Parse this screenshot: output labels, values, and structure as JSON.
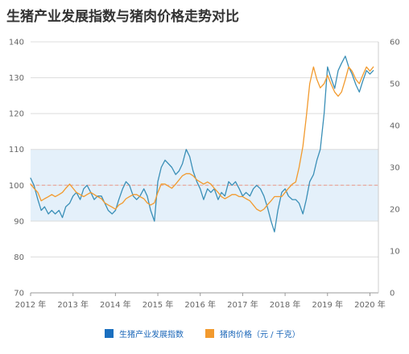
{
  "chart_data": {
    "type": "line",
    "title": "生猪产业发展指数与猪肉价格走势对比",
    "y_left": {
      "lim": [
        70,
        140
      ],
      "ticks": [
        "70",
        "80",
        "90",
        "100",
        "110",
        "120",
        "130",
        "140"
      ]
    },
    "y_right": {
      "lim": [
        0,
        60
      ],
      "ticks": [
        "0",
        "10",
        "20",
        "30",
        "40",
        "50",
        "60"
      ]
    },
    "x_ticks": [
      "2012 年",
      "2013 年",
      "2014 年",
      "2015 年",
      "2016 年",
      "2017 年",
      "2018 年",
      "2019 年",
      "2020 年"
    ],
    "band": {
      "range": [
        90,
        110
      ],
      "color": "#e4f0fa"
    },
    "reference_line": {
      "value": 100,
      "color": "#e8a9a0"
    },
    "grid": true,
    "legend_position": "bottom",
    "series": [
      {
        "name": "生猪产业发展指数",
        "axis": "left",
        "color": "#3a8fb7",
        "x": [
          2012.0,
          2012.08,
          2012.17,
          2012.25,
          2012.33,
          2012.42,
          2012.5,
          2012.58,
          2012.67,
          2012.75,
          2012.83,
          2012.92,
          2013.0,
          2013.08,
          2013.17,
          2013.25,
          2013.33,
          2013.42,
          2013.5,
          2013.58,
          2013.67,
          2013.75,
          2013.83,
          2013.92,
          2014.0,
          2014.08,
          2014.17,
          2014.25,
          2014.33,
          2014.42,
          2014.5,
          2014.58,
          2014.67,
          2014.75,
          2014.83,
          2014.92,
          2015.0,
          2015.08,
          2015.17,
          2015.25,
          2015.33,
          2015.42,
          2015.5,
          2015.58,
          2015.67,
          2015.75,
          2015.83,
          2015.92,
          2016.0,
          2016.08,
          2016.17,
          2016.25,
          2016.33,
          2016.42,
          2016.5,
          2016.58,
          2016.67,
          2016.75,
          2016.83,
          2016.92,
          2017.0,
          2017.08,
          2017.17,
          2017.25,
          2017.33,
          2017.42,
          2017.5,
          2017.58,
          2017.67,
          2017.75,
          2017.83,
          2017.92,
          2018.0,
          2018.08,
          2018.17,
          2018.25,
          2018.33,
          2018.42,
          2018.5,
          2018.58,
          2018.67,
          2018.75,
          2018.83,
          2018.92,
          2019.0,
          2019.08,
          2019.17,
          2019.25,
          2019.33,
          2019.42,
          2019.5,
          2019.58,
          2019.67,
          2019.75,
          2019.83,
          2019.92,
          2020.0,
          2020.08
        ],
        "values": [
          102,
          100,
          96,
          93,
          94,
          92,
          93,
          92,
          93,
          91,
          94,
          95,
          97,
          98,
          96,
          99,
          100,
          98,
          96,
          97,
          97,
          95,
          93,
          92,
          93,
          96,
          99,
          101,
          100,
          97,
          96,
          97,
          99,
          97,
          93,
          90,
          101,
          105,
          107,
          106,
          105,
          103,
          104,
          106,
          110,
          108,
          104,
          101,
          99,
          96,
          99,
          98,
          99,
          96,
          98,
          97,
          101,
          100,
          101,
          99,
          97,
          98,
          97,
          99,
          100,
          99,
          97,
          94,
          90,
          87,
          93,
          98,
          99,
          97,
          96,
          96,
          95,
          92,
          96,
          101,
          103,
          107,
          110,
          120,
          133,
          130,
          127,
          132,
          134,
          136,
          133,
          131,
          128,
          126,
          129,
          132,
          131,
          132
        ]
      },
      {
        "name": "猪肉价格（元 / 千克）",
        "axis": "right",
        "color": "#f29a2e",
        "x": [
          2012.0,
          2012.08,
          2012.17,
          2012.25,
          2012.33,
          2012.42,
          2012.5,
          2012.58,
          2012.67,
          2012.75,
          2012.83,
          2012.92,
          2013.0,
          2013.08,
          2013.17,
          2013.25,
          2013.33,
          2013.42,
          2013.5,
          2013.58,
          2013.67,
          2013.75,
          2013.83,
          2013.92,
          2014.0,
          2014.08,
          2014.17,
          2014.25,
          2014.33,
          2014.42,
          2014.5,
          2014.58,
          2014.67,
          2014.75,
          2014.83,
          2014.92,
          2015.0,
          2015.08,
          2015.17,
          2015.25,
          2015.33,
          2015.42,
          2015.5,
          2015.58,
          2015.67,
          2015.75,
          2015.83,
          2015.92,
          2016.0,
          2016.08,
          2016.17,
          2016.25,
          2016.33,
          2016.42,
          2016.5,
          2016.58,
          2016.67,
          2016.75,
          2016.83,
          2016.92,
          2017.0,
          2017.08,
          2017.17,
          2017.25,
          2017.33,
          2017.42,
          2017.5,
          2017.58,
          2017.67,
          2017.75,
          2017.83,
          2017.92,
          2018.0,
          2018.08,
          2018.17,
          2018.25,
          2018.33,
          2018.42,
          2018.5,
          2018.58,
          2018.67,
          2018.75,
          2018.83,
          2018.92,
          2019.0,
          2019.08,
          2019.17,
          2019.25,
          2019.33,
          2019.42,
          2019.5,
          2019.58,
          2019.67,
          2019.75,
          2019.83,
          2019.92,
          2020.0,
          2020.08
        ],
        "values": [
          26,
          25,
          24,
          22,
          22.5,
          23,
          23.5,
          23,
          23.5,
          24,
          25,
          26,
          25,
          24,
          23.5,
          23,
          23.5,
          24,
          23.5,
          23,
          22.5,
          21.5,
          21,
          20.5,
          20,
          21,
          21.5,
          22.5,
          23,
          23.5,
          23.5,
          23,
          22.5,
          21.5,
          21,
          21.5,
          24,
          26,
          26,
          25.5,
          25,
          26,
          27,
          28,
          28.5,
          28.5,
          28,
          27,
          26.5,
          26,
          26.5,
          26,
          25,
          24,
          23,
          22.5,
          23,
          23.5,
          23.5,
          23,
          23,
          22.5,
          22,
          21,
          20,
          19.5,
          20,
          21,
          22,
          23,
          23,
          23,
          24,
          25,
          26,
          26.5,
          30,
          35,
          42,
          50,
          54,
          51,
          49,
          50,
          52,
          50,
          48,
          47,
          48,
          51,
          54,
          53,
          51,
          50,
          52,
          54,
          53,
          54
        ]
      }
    ]
  },
  "legend": [
    {
      "label": "生猪产业发展指数",
      "color": "#1a6fbf"
    },
    {
      "label": "猪肉价格（元 / 千克）",
      "color": "#f29a2e"
    }
  ]
}
